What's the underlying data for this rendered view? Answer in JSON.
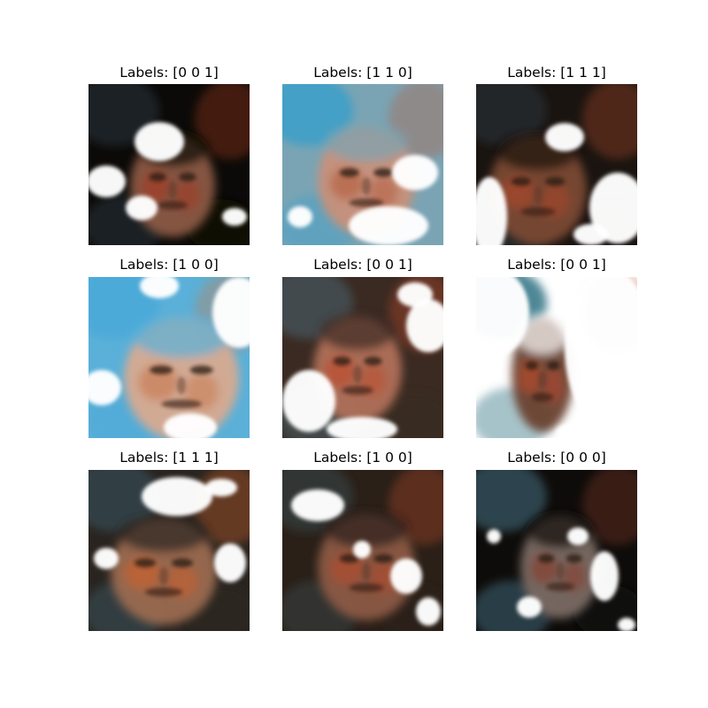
{
  "figure": {
    "panels": [
      {
        "title": "Labels: [0 0 1]",
        "palette": {
          "bg": "#0c0a08",
          "skin": "#8a5a44",
          "accent": "#a83a20",
          "light": "#ffffff",
          "blue": "#2a3a44"
        }
      },
      {
        "title": "Labels: [1 1 0]",
        "palette": {
          "bg": "#7aa4b4",
          "skin": "#c8907a",
          "accent": "#b45a3a",
          "light": "#ffffff",
          "blue": "#3fa0c8"
        }
      },
      {
        "title": "Labels: [1 1 1]",
        "palette": {
          "bg": "#1a1410",
          "skin": "#7a4a34",
          "accent": "#b0482a",
          "light": "#ffffff",
          "blue": "#2c3a40"
        }
      },
      {
        "title": "Labels: [1 0 0]",
        "palette": {
          "bg": "#5ab0d8",
          "skin": "#d8aa90",
          "accent": "#c8784a",
          "light": "#ffffff",
          "blue": "#4aa8d8"
        }
      },
      {
        "title": "Labels: [0 0 1]",
        "palette": {
          "bg": "#3a2a22",
          "skin": "#b07058",
          "accent": "#c04a2a",
          "light": "#ffffff",
          "blue": "#4a6a78"
        }
      },
      {
        "title": "Labels: [0 0 1]",
        "palette": {
          "bg": "#ffffff",
          "skin": "#6a4030",
          "accent": "#c0482a",
          "light": "#ffffff",
          "blue": "#3a7a8a"
        }
      },
      {
        "title": "Labels: [1 1 1]",
        "palette": {
          "bg": "#2a2420",
          "skin": "#9a6a50",
          "accent": "#d0602a",
          "light": "#ffffff",
          "blue": "#3a5a68"
        }
      },
      {
        "title": "Labels: [1 0 0]",
        "palette": {
          "bg": "#2a2018",
          "skin": "#8a5a44",
          "accent": "#b84a2a",
          "light": "#ffffff",
          "blue": "#3a4a50"
        }
      },
      {
        "title": "Labels: [0 0 0]",
        "palette": {
          "bg": "#0e0c0a",
          "skin": "#7a6a62",
          "accent": "#8a3a28",
          "light": "#ffffff",
          "blue": "#4a7a90"
        }
      }
    ]
  }
}
